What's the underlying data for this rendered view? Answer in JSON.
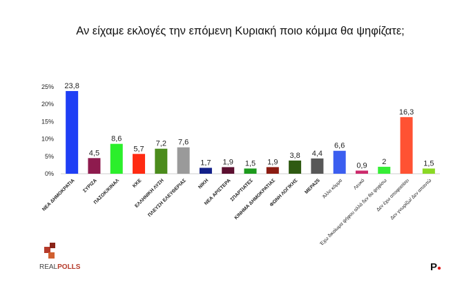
{
  "chart_data": {
    "type": "bar",
    "title": "Αν είχαμε εκλογές την επόμενη Κυριακή ποιο κόμμα θα ψηφίζατε;",
    "xlabel": "",
    "ylabel": "",
    "ylim": [
      0,
      25
    ],
    "yticks": [
      "0%",
      "5%",
      "10%",
      "15%",
      "20%",
      "25%"
    ],
    "grid": false,
    "categories": [
      "ΝΕΑ ΔΗΜΟΚΡΑΤΙΑ",
      "ΣΥΡΙΖΑ",
      "ΠΑΣΟΚ/ΚΙΝΑΛ",
      "ΚΚΕ",
      "ΕΛΛΗΝΙΚΗ ΛΥΣΗ",
      "ΠΛΕΥΣΗ ΕΛΕΥΘΕΡΙΑΣ",
      "ΝΙΚΗ",
      "ΝΕΑ ΑΡΙΣΤΕΡΑ",
      "ΣΠΑΡΤΙΑΤΕΣ",
      "ΚΙΝΗΜΑ ΔΗΜΟΚΡΑΤΙΑΣ",
      "ΦΩΝΗ ΛΟΓΙΚΗΣ",
      "ΜΕΡΑ25",
      "Άλλο κόμμα",
      "Λευκό",
      "Έχω δικαίωμα ψήφου αλλά δεν θα ψηφίσω",
      "Δεν έχω αποφασίσει",
      "Δεν γνωρίζω/ Δεν απαντώ"
    ],
    "values": [
      23.8,
      4.5,
      8.6,
      5.7,
      7.2,
      7.6,
      1.7,
      1.9,
      1.5,
      1.9,
      3.8,
      4.4,
      6.6,
      0.9,
      2,
      16.3,
      1.5
    ],
    "value_labels": [
      "23,8",
      "4,5",
      "8,6",
      "5,7",
      "7,2",
      "7,6",
      "1,7",
      "1,9",
      "1,5",
      "1,9",
      "3,8",
      "4,4",
      "6,6",
      "0,9",
      "2",
      "16,3",
      "1,5"
    ],
    "colors": [
      "#1f3ff5",
      "#8e1b4e",
      "#2bef2b",
      "#ff2b12",
      "#4b8c1c",
      "#9a9a9a",
      "#13208a",
      "#5c1030",
      "#1c9a1c",
      "#8c1c12",
      "#2f5a12",
      "#585858",
      "#3b5ef0",
      "#cc2a6c",
      "#36ee36",
      "#ff5233",
      "#8ad824"
    ]
  },
  "logo": {
    "text_a": "REAL",
    "text_b": "POLLS",
    "brand_mark": "P"
  }
}
